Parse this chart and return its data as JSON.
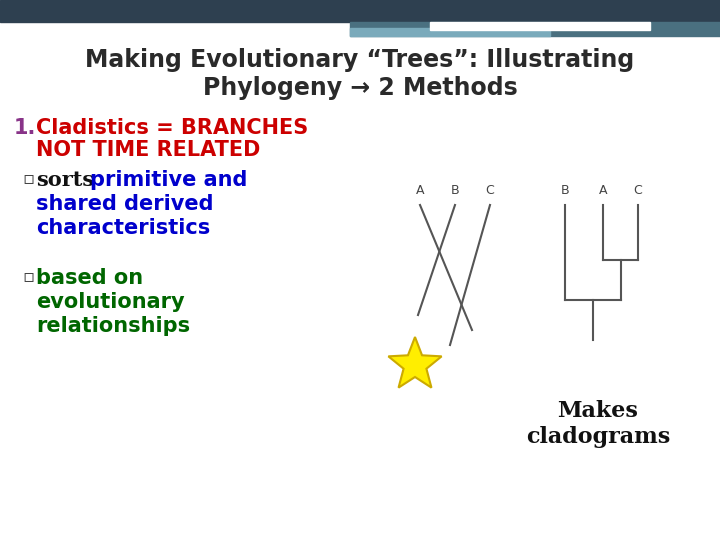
{
  "slide_bg": "#ffffff",
  "title_line1": "Making Evolutionary “Trees”: Illustrating",
  "title_line2": "Phylogeny → 2 Methods",
  "title_color": "#2a2a2a",
  "header_bar1_color": "#2e4050",
  "header_bar2_color": "#4a7080",
  "header_bar3_color": "#7aaabb",
  "white_bar_color": "#ffffff",
  "item1_number": "1.",
  "item1_line1": "Cladistics = BRANCHES",
  "item1_line2": "NOT TIME RELATED",
  "item1_color": "#cc0000",
  "item1_num_color": "#883388",
  "bullet_char": "▫",
  "bullet1_bold": "sorts",
  "bullet1_rest": " primitive and",
  "bullet1_line2": "shared derived",
  "bullet1_line3": "characteristics",
  "bullet1_color": "#0000cc",
  "bullet2_line1": "based on",
  "bullet2_line2": "evolutionary",
  "bullet2_line3": "relationships",
  "bullet2_color": "#006600",
  "makes_label1": "Makes",
  "makes_label2": "cladograms",
  "makes_color": "#111111",
  "star_color": "#ffee00",
  "star_edge_color": "#ccaa00",
  "diagram_color": "#555555"
}
